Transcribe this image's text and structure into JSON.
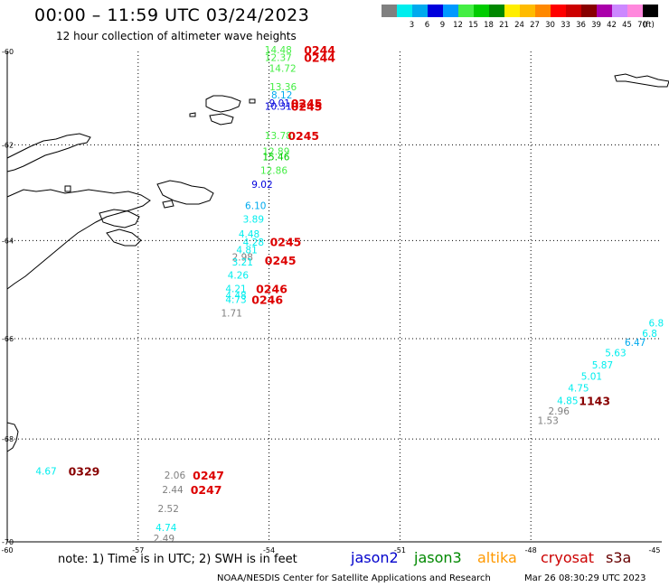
{
  "title": "00:00 – 11:59 UTC 03/24/2023",
  "subtitle": "12 hour collection of altimeter wave heights",
  "legend": {
    "unit": "(ft)",
    "bins": [
      {
        "label": "",
        "color": "#808080"
      },
      {
        "label": "3",
        "color": "#00eeee"
      },
      {
        "label": "6",
        "color": "#00aaee"
      },
      {
        "label": "9",
        "color": "#0000dd"
      },
      {
        "label": "12",
        "color": "#0099ff"
      },
      {
        "label": "15",
        "color": "#44ee44"
      },
      {
        "label": "18",
        "color": "#00cc00"
      },
      {
        "label": "21",
        "color": "#008800"
      },
      {
        "label": "24",
        "color": "#ffee00"
      },
      {
        "label": "27",
        "color": "#ffbb00"
      },
      {
        "label": "30",
        "color": "#ff8800"
      },
      {
        "label": "33",
        "color": "#ff0000"
      },
      {
        "label": "36",
        "color": "#cc0000"
      },
      {
        "label": "39",
        "color": "#880000"
      },
      {
        "label": "42",
        "color": "#aa00aa"
      },
      {
        "label": "45",
        "color": "#cc88ff"
      },
      {
        "label": "70",
        "color": "#ff88dd"
      },
      {
        "label": "",
        "color": "#000000"
      }
    ]
  },
  "axes": {
    "lat_labels": [
      "-60",
      "-62",
      "-64",
      "-66",
      "-68",
      "-70"
    ],
    "lon_labels": [
      "-60",
      "-57",
      "-54",
      "-51",
      "-48",
      "-45"
    ]
  },
  "observations": [
    {
      "text": "14.48",
      "color": "#44ee44",
      "lon": -54.1,
      "lat": -59.96
    },
    {
      "text": "12.37",
      "color": "#44ee44",
      "lon": -54.1,
      "lat": -60.12
    },
    {
      "text": "14.72",
      "color": "#44ee44",
      "lon": -54.0,
      "lat": -60.36
    },
    {
      "text": "13.36",
      "color": "#44ee44",
      "lon": -53.99,
      "lat": -60.76
    },
    {
      "text": "8.12",
      "color": "#00aaee",
      "lon": -53.95,
      "lat": -60.93
    },
    {
      "text": "9.01",
      "color": "#0000dd",
      "lon": -54.0,
      "lat": -61.1
    },
    {
      "text": "10.31",
      "color": "#0000dd",
      "lon": -54.1,
      "lat": -61.17
    },
    {
      "text": "13.78",
      "color": "#44ee44",
      "lon": -54.1,
      "lat": -61.8
    },
    {
      "text": "12.89",
      "color": "#44ee44",
      "lon": -54.15,
      "lat": -62.13
    },
    {
      "text": "15.46",
      "color": "#00cc00",
      "lon": -54.15,
      "lat": -62.25
    },
    {
      "text": "12.86",
      "color": "#44ee44",
      "lon": -54.2,
      "lat": -62.53
    },
    {
      "text": "9.02",
      "color": "#0000dd",
      "lon": -54.4,
      "lat": -62.82
    },
    {
      "text": "6.10",
      "color": "#00aaee",
      "lon": -54.55,
      "lat": -63.27
    },
    {
      "text": "3.89",
      "color": "#00eeee",
      "lon": -54.6,
      "lat": -63.55
    },
    {
      "text": "4.48",
      "color": "#00eeee",
      "lon": -54.7,
      "lat": -63.86
    },
    {
      "text": "4.28",
      "color": "#00eeee",
      "lon": -54.6,
      "lat": -64.03
    },
    {
      "text": "4.81",
      "color": "#00eeee",
      "lon": -54.75,
      "lat": -64.18
    },
    {
      "text": "2.98",
      "color": "#808080",
      "lon": -54.85,
      "lat": -64.33
    },
    {
      "text": "3.21",
      "color": "#00eeee",
      "lon": -54.85,
      "lat": -64.43
    },
    {
      "text": "4.26",
      "color": "#00eeee",
      "lon": -54.95,
      "lat": -64.7
    },
    {
      "text": "4.21",
      "color": "#00eeee",
      "lon": -55.0,
      "lat": -64.98
    },
    {
      "text": "4.48",
      "color": "#00eeee",
      "lon": -55.0,
      "lat": -65.12
    },
    {
      "text": "4.73",
      "color": "#00eeee",
      "lon": -55.0,
      "lat": -65.2
    },
    {
      "text": "1.71",
      "color": "#808080",
      "lon": -55.1,
      "lat": -65.48
    },
    {
      "text": "6.8",
      "color": "#00eeee",
      "lon": -45.3,
      "lat": -65.68
    },
    {
      "text": "6.8",
      "color": "#00eeee",
      "lon": -45.45,
      "lat": -65.89
    },
    {
      "text": "6.47",
      "color": "#00aaee",
      "lon": -45.85,
      "lat": -66.07
    },
    {
      "text": "5.63",
      "color": "#00eeee",
      "lon": -46.3,
      "lat": -66.28
    },
    {
      "text": "5.87",
      "color": "#00eeee",
      "lon": -46.6,
      "lat": -66.52
    },
    {
      "text": "5.01",
      "color": "#00eeee",
      "lon": -46.85,
      "lat": -66.75
    },
    {
      "text": "4.75",
      "color": "#00eeee",
      "lon": -47.15,
      "lat": -66.98
    },
    {
      "text": "4.85",
      "color": "#00eeee",
      "lon": -47.4,
      "lat": -67.23
    },
    {
      "text": "2.96",
      "color": "#808080",
      "lon": -47.6,
      "lat": -67.44
    },
    {
      "text": "1.53",
      "color": "#808080",
      "lon": -47.85,
      "lat": -67.63
    },
    {
      "text": "4.67",
      "color": "#00eeee",
      "lon": -59.35,
      "lat": -68.62
    },
    {
      "text": "2.06",
      "color": "#808080",
      "lon": -56.4,
      "lat": -68.7
    },
    {
      "text": "2.44",
      "color": "#808080",
      "lon": -56.45,
      "lat": -68.98
    },
    {
      "text": "2.52",
      "color": "#808080",
      "lon": -56.55,
      "lat": -69.35
    },
    {
      "text": "4.74",
      "color": "#00eeee",
      "lon": -56.6,
      "lat": -69.72
    },
    {
      "text": "2.49",
      "color": "#808080",
      "lon": -56.65,
      "lat": -69.93
    }
  ],
  "times": [
    {
      "text": "0244",
      "color": "#dd0000",
      "lon": -53.2,
      "lat": -59.96
    },
    {
      "text": "0244",
      "color": "#dd0000",
      "lon": -53.2,
      "lat": -60.12
    },
    {
      "text": "0245",
      "color": "#dd0000",
      "lon": -53.5,
      "lat": -61.1
    },
    {
      "text": "0245",
      "color": "#dd0000",
      "lon": -53.5,
      "lat": -61.17
    },
    {
      "text": "0245",
      "color": "#dd0000",
      "lon": -53.57,
      "lat": -61.8
    },
    {
      "text": "0245",
      "color": "#dd0000",
      "lon": -53.98,
      "lat": -64.02
    },
    {
      "text": "0245",
      "color": "#dd0000",
      "lon": -54.1,
      "lat": -64.4
    },
    {
      "text": "0246",
      "color": "#dd0000",
      "lon": -54.3,
      "lat": -64.98
    },
    {
      "text": "0246",
      "color": "#dd0000",
      "lon": -54.4,
      "lat": -65.2
    },
    {
      "text": "1143",
      "color": "#880000",
      "lon": -46.9,
      "lat": -67.23
    },
    {
      "text": "0329",
      "color": "#880000",
      "lon": -58.6,
      "lat": -68.62
    },
    {
      "text": "0247",
      "color": "#dd0000",
      "lon": -55.75,
      "lat": -68.7
    },
    {
      "text": "0247",
      "color": "#dd0000",
      "lon": -55.8,
      "lat": -68.98
    }
  ],
  "footer": {
    "note": "note:  1) Time is in UTC;  2) SWH is in feet",
    "satellites": [
      {
        "name": "jason2",
        "color": "#0000cc"
      },
      {
        "name": "jason3",
        "color": "#008800"
      },
      {
        "name": "altika",
        "color": "#ff9900"
      },
      {
        "name": "cryosat",
        "color": "#cc0000"
      },
      {
        "name": "s3a",
        "color": "#660000"
      }
    ],
    "credit": "NOAA/NESDIS Center for Satellite Applications and Research",
    "timestamp": "Mar 26 08:30:29 UTC 2023"
  }
}
